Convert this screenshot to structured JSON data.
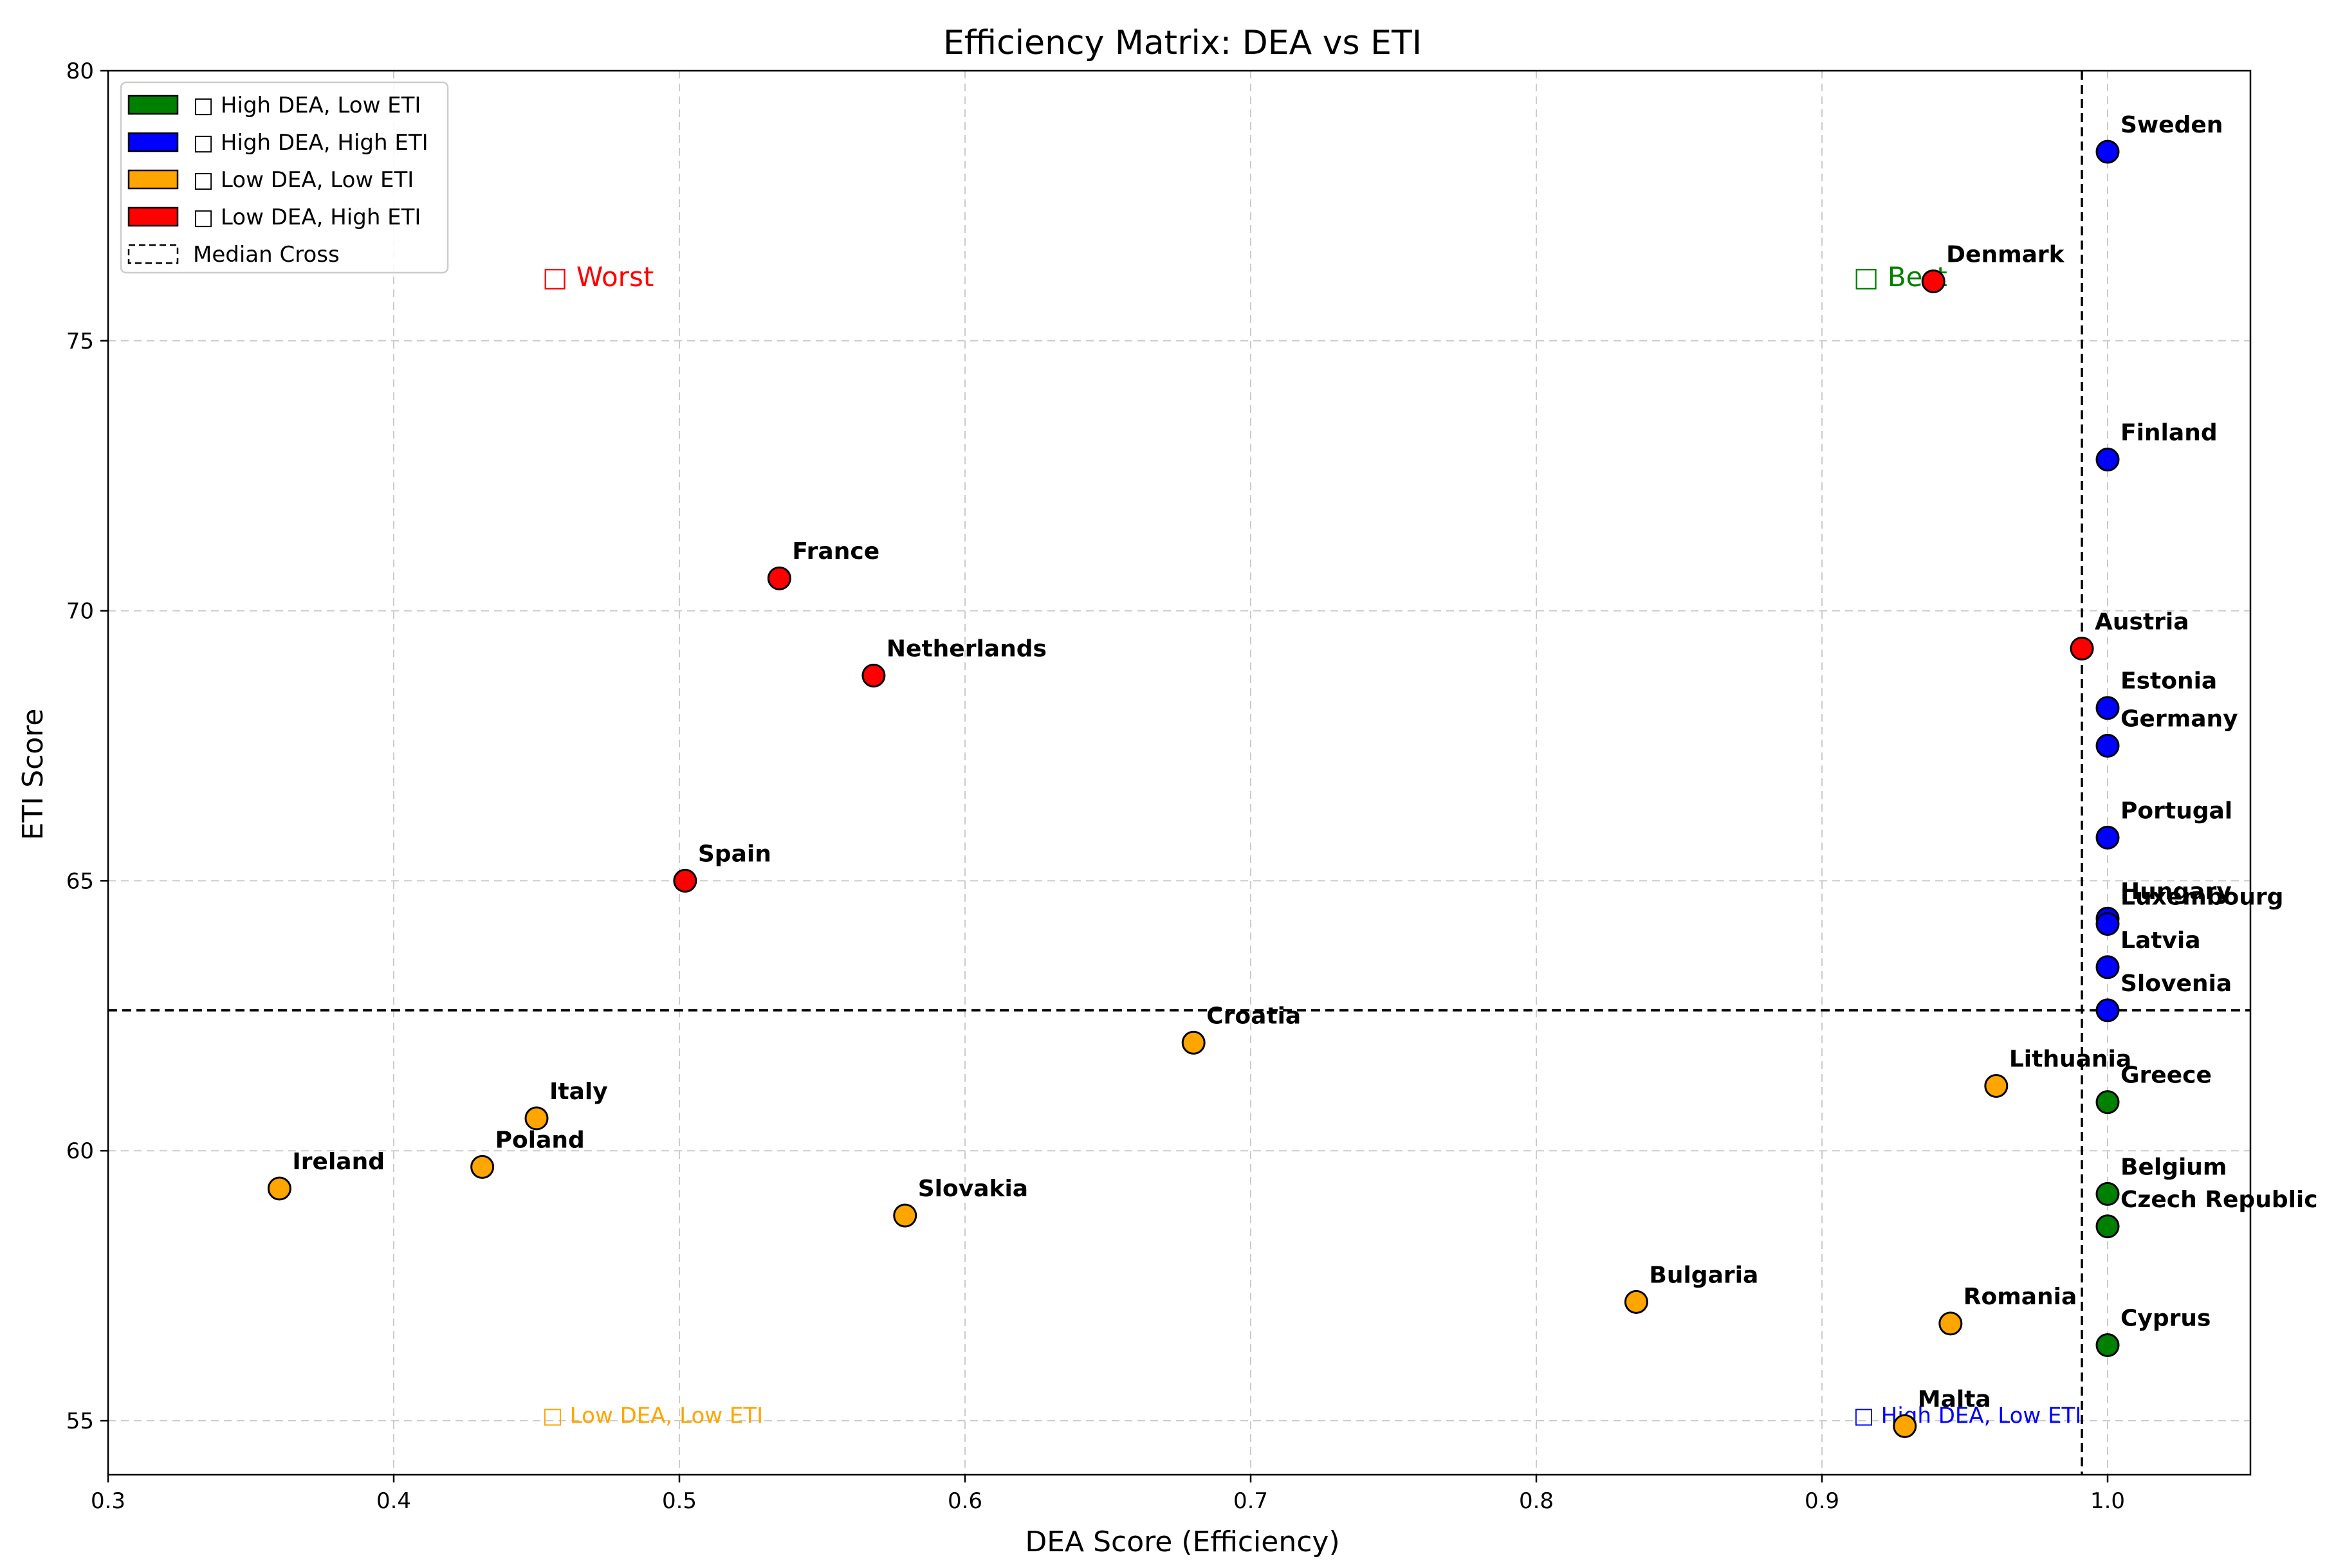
{
  "chart_data": {
    "type": "scatter",
    "title": "Efficiency Matrix: DEA vs ETI",
    "xlabel": "DEA Score (Efficiency)",
    "ylabel": "ETI Score",
    "xlim": [
      0.3,
      1.05
    ],
    "ylim": [
      54.0,
      80.0
    ],
    "xticks": [
      0.3,
      0.4,
      0.5,
      0.6,
      0.7,
      0.8,
      0.9,
      1.0
    ],
    "xtick_labels": [
      "0.3",
      "0.4",
      "0.5",
      "0.6",
      "0.7",
      "0.8",
      "0.9",
      "1.0"
    ],
    "yticks": [
      55,
      60,
      65,
      70,
      75,
      80
    ],
    "ytick_labels": [
      "55",
      "60",
      "65",
      "70",
      "75",
      "80"
    ],
    "grid": true,
    "median_cross": {
      "x": 0.991,
      "y": 62.6
    },
    "legend": {
      "placement": "top-left",
      "entries": [
        {
          "label": "□ High DEA, Low ETI",
          "color": "#008000"
        },
        {
          "label": "□ High DEA, High ETI",
          "color": "#0000ff"
        },
        {
          "label": "□ Low DEA, Low ETI",
          "color": "#ffa500"
        },
        {
          "label": "□ Low DEA, High ETI",
          "color": "#ff0000"
        },
        {
          "label": "Median Cross",
          "color": "#000000"
        }
      ]
    },
    "quadrant_labels": [
      {
        "text": "□ Worst",
        "x": 0.452,
        "y": 76.2,
        "color": "#ff0000",
        "size": "large"
      },
      {
        "text": "□ Best",
        "x": 0.911,
        "y": 76.2,
        "color": "#008000",
        "size": "large"
      },
      {
        "text": "□ Low DEA, Low ETI",
        "x": 0.452,
        "y": 55.1,
        "color": "#ffa500",
        "size": "small"
      },
      {
        "text": "□ High DEA, Low ETI",
        "x": 0.911,
        "y": 55.1,
        "color": "#0000ff",
        "size": "small"
      }
    ],
    "series": [
      {
        "name": "High DEA, High ETI",
        "color": "#0000ff",
        "points": [
          {
            "country": "Sweden",
            "x": 1.0,
            "y": 78.5
          },
          {
            "country": "Finland",
            "x": 1.0,
            "y": 72.8
          },
          {
            "country": "Estonia",
            "x": 1.0,
            "y": 68.2
          },
          {
            "country": "Germany",
            "x": 1.0,
            "y": 67.5
          },
          {
            "country": "Portugal",
            "x": 1.0,
            "y": 65.8
          },
          {
            "country": "Hungary",
            "x": 1.0,
            "y": 64.3
          },
          {
            "country": "Luxembourg",
            "x": 1.0,
            "y": 64.2
          },
          {
            "country": "Latvia",
            "x": 1.0,
            "y": 63.4
          },
          {
            "country": "Slovenia",
            "x": 1.0,
            "y": 62.6
          }
        ]
      },
      {
        "name": "High DEA, Low ETI",
        "color": "#008000",
        "points": [
          {
            "country": "Greece",
            "x": 1.0,
            "y": 60.9
          },
          {
            "country": "Belgium",
            "x": 1.0,
            "y": 59.2
          },
          {
            "country": "Czech Republic",
            "x": 1.0,
            "y": 58.6
          },
          {
            "country": "Cyprus",
            "x": 1.0,
            "y": 56.4
          }
        ]
      },
      {
        "name": "Low DEA, High ETI",
        "color": "#ff0000",
        "points": [
          {
            "country": "Denmark",
            "x": 0.939,
            "y": 76.1
          },
          {
            "country": "France",
            "x": 0.535,
            "y": 70.6
          },
          {
            "country": "Netherlands",
            "x": 0.568,
            "y": 68.8
          },
          {
            "country": "Spain",
            "x": 0.502,
            "y": 65.0
          },
          {
            "country": "Austria",
            "x": 0.991,
            "y": 69.3
          }
        ]
      },
      {
        "name": "Low DEA, Low ETI",
        "color": "#ffa500",
        "points": [
          {
            "country": "Croatia",
            "x": 0.68,
            "y": 62.0
          },
          {
            "country": "Lithuania",
            "x": 0.961,
            "y": 61.2
          },
          {
            "country": "Italy",
            "x": 0.45,
            "y": 60.6
          },
          {
            "country": "Poland",
            "x": 0.431,
            "y": 59.7
          },
          {
            "country": "Ireland",
            "x": 0.36,
            "y": 59.3
          },
          {
            "country": "Slovakia",
            "x": 0.579,
            "y": 58.8
          },
          {
            "country": "Bulgaria",
            "x": 0.835,
            "y": 57.2
          },
          {
            "country": "Romania",
            "x": 0.945,
            "y": 56.8
          },
          {
            "country": "Malta",
            "x": 0.929,
            "y": 54.9
          }
        ]
      }
    ]
  }
}
